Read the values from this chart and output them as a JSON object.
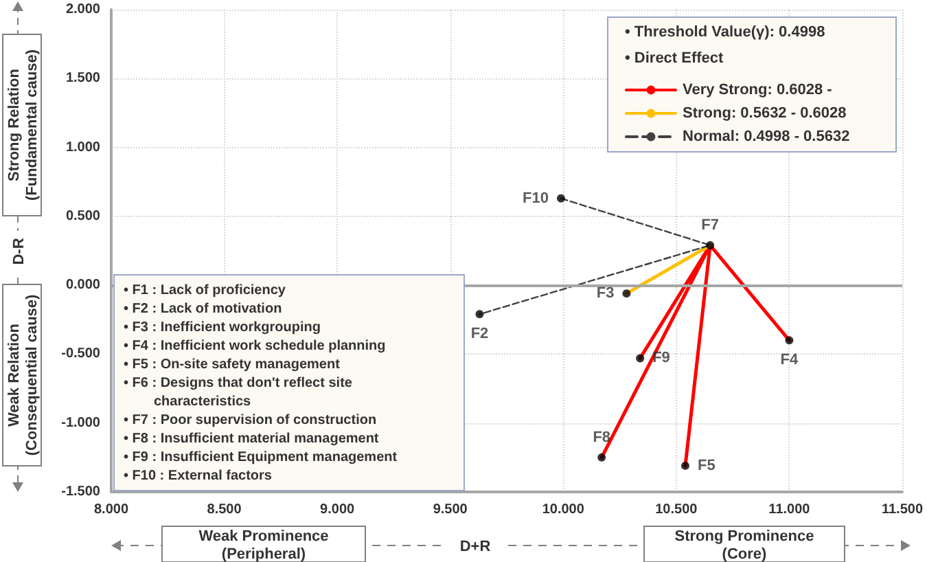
{
  "chart_data": {
    "type": "scatter",
    "xlabel": "D+R",
    "ylabel": "D-R",
    "legend_title": "• Direct Effect",
    "xlim": [
      8,
      11.5
    ],
    "xticks": [
      {
        "value": 8,
        "label": "8.000"
      },
      {
        "value": 8.5,
        "label": "8.500"
      },
      {
        "value": 9,
        "label": "9.000"
      },
      {
        "value": 9.5,
        "label": "9.500"
      },
      {
        "value": 10,
        "label": "10.000"
      },
      {
        "value": 10.5,
        "label": "10.500"
      },
      {
        "value": 11,
        "label": "11.000"
      },
      {
        "value": 11.5,
        "label": "11.500"
      }
    ],
    "ylim": [
      -1.5,
      2
    ],
    "yticks": [
      {
        "value": -1.5,
        "label": "-1.500"
      },
      {
        "value": -1,
        "label": "-1.000"
      },
      {
        "value": -0.5,
        "label": "-0.500"
      },
      {
        "value": 0,
        "label": "0.000"
      },
      {
        "value": 0.5,
        "label": "0.500"
      },
      {
        "value": 1,
        "label": "1.000"
      },
      {
        "value": 1.5,
        "label": "1.500"
      },
      {
        "value": 2,
        "label": "2.000"
      }
    ],
    "grid": true,
    "legend": "top right",
    "marker": "circle",
    "ref_lines": [
      {
        "axis": "y",
        "value": 0,
        "color": "#a6a6a6"
      }
    ],
    "series": [
      {
        "color": "#000000",
        "x": [
          10.65,
          9.99,
          10.28,
          9.63,
          11.0,
          10.34,
          10.17,
          10.54
        ],
        "values": [
          0.29,
          0.63,
          -0.06,
          -0.21,
          -0.4,
          -0.53,
          -1.25,
          -1.31
        ],
        "value_labels": [
          "F7",
          "F10",
          "F3",
          "F2",
          "F4",
          "F9",
          "F8",
          "F5"
        ]
      },
      {
        "type": "line",
        "name": "Very Strong: 0.6028 -",
        "color": "#ff0000",
        "line_style": "solid",
        "marker": "none",
        "x": [
          10.34,
          10.65,
          11.0,
          10.65,
          10.17,
          10.65,
          10.54
        ],
        "values": [
          -0.53,
          0.29,
          -0.4,
          0.29,
          -1.25,
          0.29,
          -1.31
        ]
      },
      {
        "type": "line",
        "name": "Strong: 0.5632 - 0.6028",
        "color": "#ffc000",
        "line_style": "solid",
        "marker": "none",
        "x": [
          10.65,
          10.28
        ],
        "values": [
          0.29,
          -0.06
        ]
      },
      {
        "type": "line",
        "name": "Normal: 0.4998 - 0.5632",
        "color": "#404040",
        "line_style": "dashed",
        "marker": "none",
        "x": [
          9.99,
          10.65,
          9.63
        ],
        "values": [
          0.63,
          0.29,
          -0.21
        ]
      }
    ],
    "annotations": [
      "• Threshold Value(γ): 0.4998",
      "Strong Relation\n(Fundamental cause)",
      "Weak Relation\n(Consequential cause)",
      "Weak Prominence\n(Peripheral)",
      "Strong Prominence\n(Core)",
      "• F1 : Lack of proficiency",
      "• F2 : Lack of motivation",
      "• F3 : Inefficient workgrouping",
      "• F4 : Inefficient work schedule planning",
      "• F5 : On-site safety management",
      "• F6 : Designs that don't reflect site characteristics",
      "• F7 : Poor supervision of construction",
      "• F8 : Insufficient material management",
      "• F9 : Insufficient Equipment management",
      "• F10 : External factors"
    ]
  }
}
